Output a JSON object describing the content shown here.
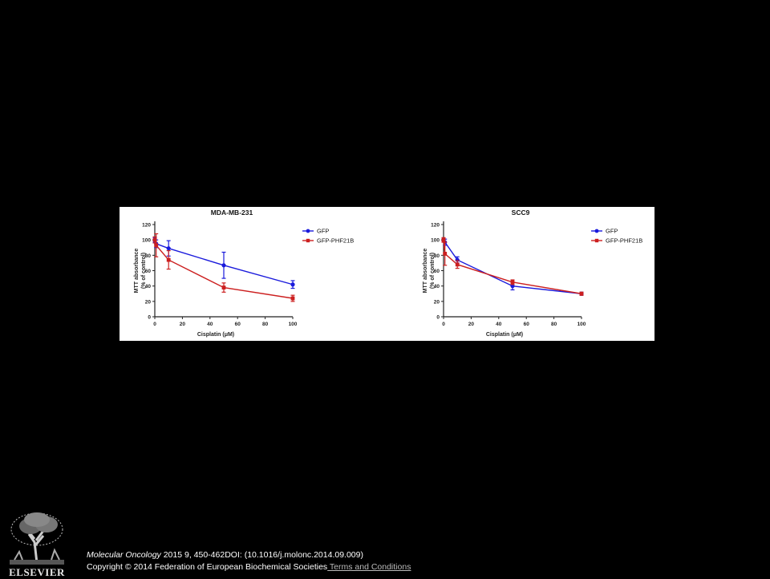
{
  "chart_data": [
    {
      "type": "line",
      "title": "MDA-MB-231",
      "xlabel": "Cisplatin (μM)",
      "ylabel_line1": "MTT absorbance",
      "ylabel_line2": "(% of control)",
      "xlim": [
        0,
        100
      ],
      "ylim": [
        0,
        120
      ],
      "xticks": [
        0,
        20,
        40,
        60,
        80,
        100
      ],
      "yticks": [
        0,
        20,
        40,
        60,
        80,
        100,
        120
      ],
      "legend_position": "right",
      "series": [
        {
          "name": "GFP",
          "color": "#1a1adc",
          "marker": "circle",
          "x": [
            0,
            1,
            10,
            50,
            100
          ],
          "y": [
            100,
            95,
            89,
            67,
            42
          ],
          "err": [
            3,
            5,
            10,
            17,
            5
          ]
        },
        {
          "name": "GFP-PHF21B",
          "color": "#cc1f1f",
          "marker": "square",
          "x": [
            0,
            1,
            10,
            50,
            100
          ],
          "y": [
            100,
            93,
            74,
            38,
            24
          ],
          "err": [
            4,
            15,
            12,
            6,
            4
          ]
        }
      ]
    },
    {
      "type": "line",
      "title": "SCC9",
      "xlabel": "Cisplatin (μM)",
      "ylabel_line1": "MTT absorbance",
      "ylabel_line2": "(% of control)",
      "xlim": [
        0,
        100
      ],
      "ylim": [
        0,
        120
      ],
      "xticks": [
        0,
        20,
        40,
        60,
        80,
        100
      ],
      "yticks": [
        0,
        20,
        40,
        60,
        80,
        100,
        120
      ],
      "legend_position": "right",
      "series": [
        {
          "name": "GFP",
          "color": "#1a1adc",
          "marker": "circle",
          "x": [
            0,
            1,
            10,
            50,
            100
          ],
          "y": [
            100,
            97,
            74,
            40,
            30
          ],
          "err": [
            2,
            4,
            4,
            5,
            2
          ]
        },
        {
          "name": "GFP-PHF21B",
          "color": "#cc1f1f",
          "marker": "square",
          "x": [
            0,
            1,
            10,
            50,
            100
          ],
          "y": [
            100,
            82,
            68,
            45,
            30
          ],
          "err": [
            3,
            15,
            5,
            3,
            2
          ]
        }
      ]
    }
  ],
  "footer": {
    "journal": "Molecular Oncology",
    "citation_rest": " 2015 9, 450-462DOI: (10.1016/j.molonc.2014.09.009)",
    "copyright": "Copyright © 2014 Federation of European Biochemical Societies",
    "terms_link": " Terms and Conditions",
    "publisher_logo_text": "ELSEVIER"
  }
}
